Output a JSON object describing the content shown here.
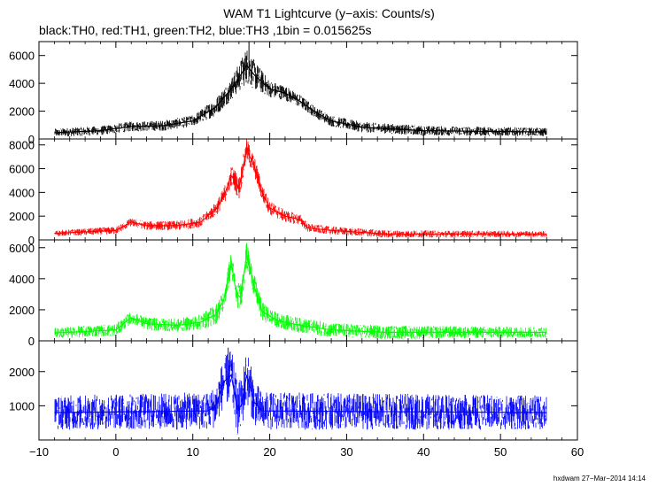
{
  "title": "WAM T1 Lightcurve (y−axis: Counts/s)",
  "subtitle": "black:TH0, red:TH1, green:TH2, blue:TH3 ,1bin = 0.015625s",
  "footer": "hxdwam 27−Mar−2014 14:14",
  "chart_data": {
    "type": "line",
    "title": "WAM T1 Lightcurve (y−axis: Counts/s)",
    "subtitle": "black:TH0, red:TH1, green:TH2, blue:TH3 ,1bin = 0.015625s",
    "xlim": [
      -10,
      60
    ],
    "x_ticks": [
      -10,
      0,
      10,
      20,
      30,
      40,
      50,
      60
    ],
    "x_tick_labels": [
      "−10",
      "0",
      "10",
      "20",
      "30",
      "40",
      "50",
      "60"
    ],
    "bin_size_s": 0.015625,
    "data_x_range": [
      -8,
      56
    ],
    "series": [
      {
        "name": "TH0",
        "color": "#000000",
        "ylim": [
          0,
          7000
        ],
        "y_ticks": [
          0,
          2000,
          4000,
          6000
        ],
        "y_tick_labels": [
          "0",
          "2000",
          "4000",
          "6000"
        ],
        "profile": [
          [
            -8,
            450
          ],
          [
            -2,
            600
          ],
          [
            2,
            900
          ],
          [
            6,
            950
          ],
          [
            10,
            1300
          ],
          [
            13,
            2300
          ],
          [
            15,
            3600
          ],
          [
            16,
            4400
          ],
          [
            17,
            5300
          ],
          [
            18,
            4600
          ],
          [
            20,
            3600
          ],
          [
            22,
            3300
          ],
          [
            24,
            2700
          ],
          [
            26,
            1900
          ],
          [
            28,
            1300
          ],
          [
            32,
            850
          ],
          [
            40,
            600
          ],
          [
            56,
            500
          ]
        ],
        "noise": [
          [
            -8,
            300
          ],
          [
            10,
            400
          ],
          [
            15,
            800
          ],
          [
            17,
            1300
          ],
          [
            20,
            600
          ],
          [
            26,
            400
          ],
          [
            56,
            300
          ]
        ],
        "peak": {
          "x": 17.3,
          "y": 7000
        }
      },
      {
        "name": "TH1",
        "color": "#ff0000",
        "ylim": [
          0,
          8500
        ],
        "y_ticks": [
          0,
          2000,
          4000,
          6000,
          8000
        ],
        "y_tick_labels": [
          "0",
          "2000",
          "4000",
          "6000",
          "8000"
        ],
        "profile": [
          [
            -8,
            550
          ],
          [
            0,
            800
          ],
          [
            2,
            1500
          ],
          [
            4,
            1200
          ],
          [
            8,
            1200
          ],
          [
            11,
            1500
          ],
          [
            13,
            2600
          ],
          [
            14,
            3600
          ],
          [
            15,
            5400
          ],
          [
            15.5,
            5000
          ],
          [
            16,
            4300
          ],
          [
            17,
            7600
          ],
          [
            18,
            6200
          ],
          [
            19,
            4000
          ],
          [
            20,
            2700
          ],
          [
            22,
            2000
          ],
          [
            24,
            1700
          ],
          [
            25,
            1000
          ],
          [
            28,
            800
          ],
          [
            35,
            500
          ],
          [
            56,
            500
          ]
        ],
        "noise": [
          [
            -8,
            250
          ],
          [
            2,
            350
          ],
          [
            12,
            450
          ],
          [
            15,
            900
          ],
          [
            17,
            1000
          ],
          [
            20,
            600
          ],
          [
            26,
            350
          ],
          [
            56,
            250
          ]
        ],
        "peak": {
          "x": 17.0,
          "y": 8200
        }
      },
      {
        "name": "TH2",
        "color": "#00ff00",
        "ylim": [
          0,
          6500
        ],
        "y_ticks": [
          0,
          2000,
          4000,
          6000
        ],
        "y_tick_labels": [
          "0",
          "2000",
          "4000",
          "6000"
        ],
        "profile": [
          [
            -8,
            500
          ],
          [
            0,
            700
          ],
          [
            2,
            1500
          ],
          [
            4,
            1100
          ],
          [
            8,
            1000
          ],
          [
            11,
            1200
          ],
          [
            13,
            1700
          ],
          [
            14,
            2600
          ],
          [
            15,
            5000
          ],
          [
            15.7,
            3000
          ],
          [
            16.2,
            2800
          ],
          [
            17,
            5500
          ],
          [
            18,
            3500
          ],
          [
            19,
            1900
          ],
          [
            21,
            1300
          ],
          [
            24,
            1000
          ],
          [
            28,
            700
          ],
          [
            35,
            550
          ],
          [
            56,
            550
          ]
        ],
        "noise": [
          [
            -8,
            350
          ],
          [
            10,
            450
          ],
          [
            15,
            800
          ],
          [
            17,
            900
          ],
          [
            20,
            500
          ],
          [
            56,
            350
          ]
        ],
        "peak": {
          "x": 17.0,
          "y": 6300
        }
      },
      {
        "name": "TH3",
        "color": "#0000ff",
        "ylim": [
          0,
          2900
        ],
        "y_ticks": [
          1000,
          2000
        ],
        "y_tick_labels": [
          "1000",
          "2000"
        ],
        "profile": [
          [
            -8,
            800
          ],
          [
            12,
            850
          ],
          [
            13,
            1000
          ],
          [
            14,
            1700
          ],
          [
            15,
            1900
          ],
          [
            15.8,
            900
          ],
          [
            16.3,
            1000
          ],
          [
            17,
            1900
          ],
          [
            18,
            1100
          ],
          [
            19,
            850
          ],
          [
            56,
            800
          ]
        ],
        "noise": [
          [
            -8,
            500
          ],
          [
            12,
            550
          ],
          [
            15,
            800
          ],
          [
            17,
            800
          ],
          [
            19,
            550
          ],
          [
            56,
            500
          ]
        ],
        "peak": {
          "x": 14.6,
          "y": 2700
        }
      }
    ]
  }
}
